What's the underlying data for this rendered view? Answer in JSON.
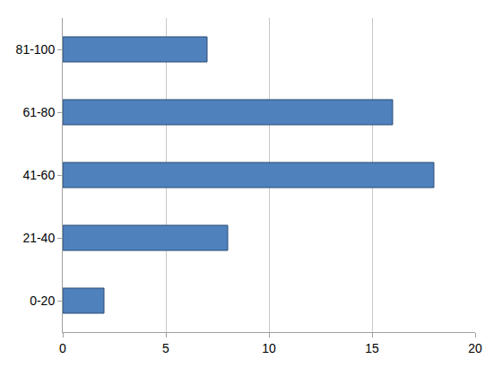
{
  "chart_data": {
    "type": "bar",
    "orientation": "horizontal",
    "categories": [
      "0-20",
      "21-40",
      "41-60",
      "61-80",
      "81-100"
    ],
    "values": [
      2,
      8,
      18,
      16,
      7
    ],
    "color": "#4f81bd",
    "xlim": [
      0,
      20
    ],
    "xticks": [
      0,
      5,
      10,
      15,
      20
    ],
    "grid": true
  }
}
